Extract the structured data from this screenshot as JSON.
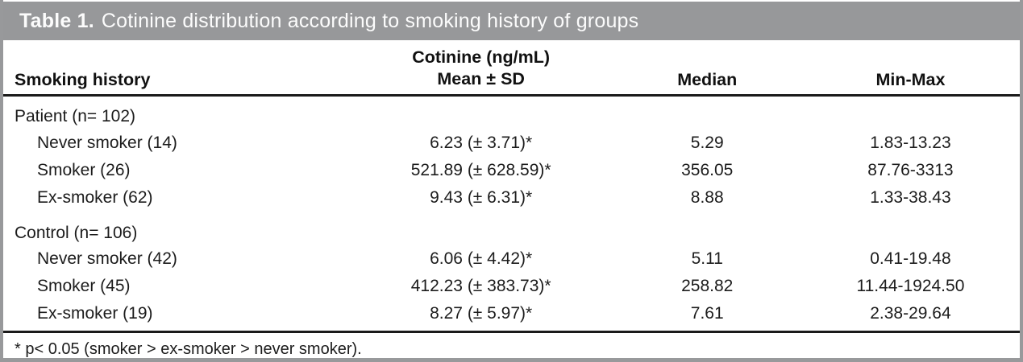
{
  "colors": {
    "title_bar_bg": "#97989a",
    "title_text": "#fcfcfc",
    "frame_border": "#98999b",
    "rule": "#1a1a1a"
  },
  "title": {
    "number": "Table 1.",
    "text": "Cotinine distribution according to smoking history of groups"
  },
  "table": {
    "headers": {
      "col1": "Smoking history",
      "col2_line1": "Cotinine (ng/mL)",
      "col2_line2": "Mean ± SD",
      "col3": "Median",
      "col4": "Min-Max"
    },
    "rows": [
      {
        "label": "Patient (n= 102)",
        "mean_sd": "",
        "median": "",
        "min_max": ""
      },
      {
        "label": "Never smoker (14)",
        "mean_sd": "6.23 (± 3.71)*",
        "median": "5.29",
        "min_max": "1.83-13.23"
      },
      {
        "label": "Smoker (26)",
        "mean_sd": "521.89 (± 628.59)*",
        "median": "356.05",
        "min_max": "87.76-3313"
      },
      {
        "label": "Ex-smoker (62)",
        "mean_sd": "9.43 (± 6.31)*",
        "median": "8.88",
        "min_max": "1.33-38.43"
      },
      {
        "label": "Control (n= 106)",
        "mean_sd": "",
        "median": "",
        "min_max": ""
      },
      {
        "label": "Never smoker (42)",
        "mean_sd": "6.06 (± 4.42)*",
        "median": "5.11",
        "min_max": "0.41-19.48"
      },
      {
        "label": "Smoker (45)",
        "mean_sd": "412.23 (± 383.73)*",
        "median": "258.82",
        "min_max": "11.44-1924.50"
      },
      {
        "label": "Ex-smoker (19)",
        "mean_sd": "8.27 (± 5.97)*",
        "median": "7.61",
        "min_max": "2.38-29.64"
      }
    ],
    "footnote": "* p< 0.05 (smoker > ex-smoker > never smoker)."
  },
  "chart_data": {
    "type": "table",
    "title": "Table 1. Cotinine distribution according to smoking history of groups",
    "columns": [
      "Smoking history",
      "Cotinine (ng/mL) Mean ± SD",
      "Median",
      "Min-Max"
    ],
    "groups": [
      {
        "name": "Patient (n= 102)",
        "rows": [
          {
            "smoking_history": "Never smoker (14)",
            "mean": 6.23,
            "sd": 3.71,
            "median": 5.29,
            "min": 1.83,
            "max": 13.23
          },
          {
            "smoking_history": "Smoker (26)",
            "mean": 521.89,
            "sd": 628.59,
            "median": 356.05,
            "min": 87.76,
            "max": 3313
          },
          {
            "smoking_history": "Ex-smoker (62)",
            "mean": 9.43,
            "sd": 6.31,
            "median": 8.88,
            "min": 1.33,
            "max": 38.43
          }
        ]
      },
      {
        "name": "Control (n= 106)",
        "rows": [
          {
            "smoking_history": "Never smoker (42)",
            "mean": 6.06,
            "sd": 4.42,
            "median": 5.11,
            "min": 0.41,
            "max": 19.48
          },
          {
            "smoking_history": "Smoker (45)",
            "mean": 412.23,
            "sd": 383.73,
            "median": 258.82,
            "min": 11.44,
            "max": 1924.5
          },
          {
            "smoking_history": "Ex-smoker (19)",
            "mean": 8.27,
            "sd": 5.97,
            "median": 7.61,
            "min": 2.38,
            "max": 29.64
          }
        ]
      }
    ],
    "footnote": "* p< 0.05 (smoker > ex-smoker > never smoker)."
  }
}
